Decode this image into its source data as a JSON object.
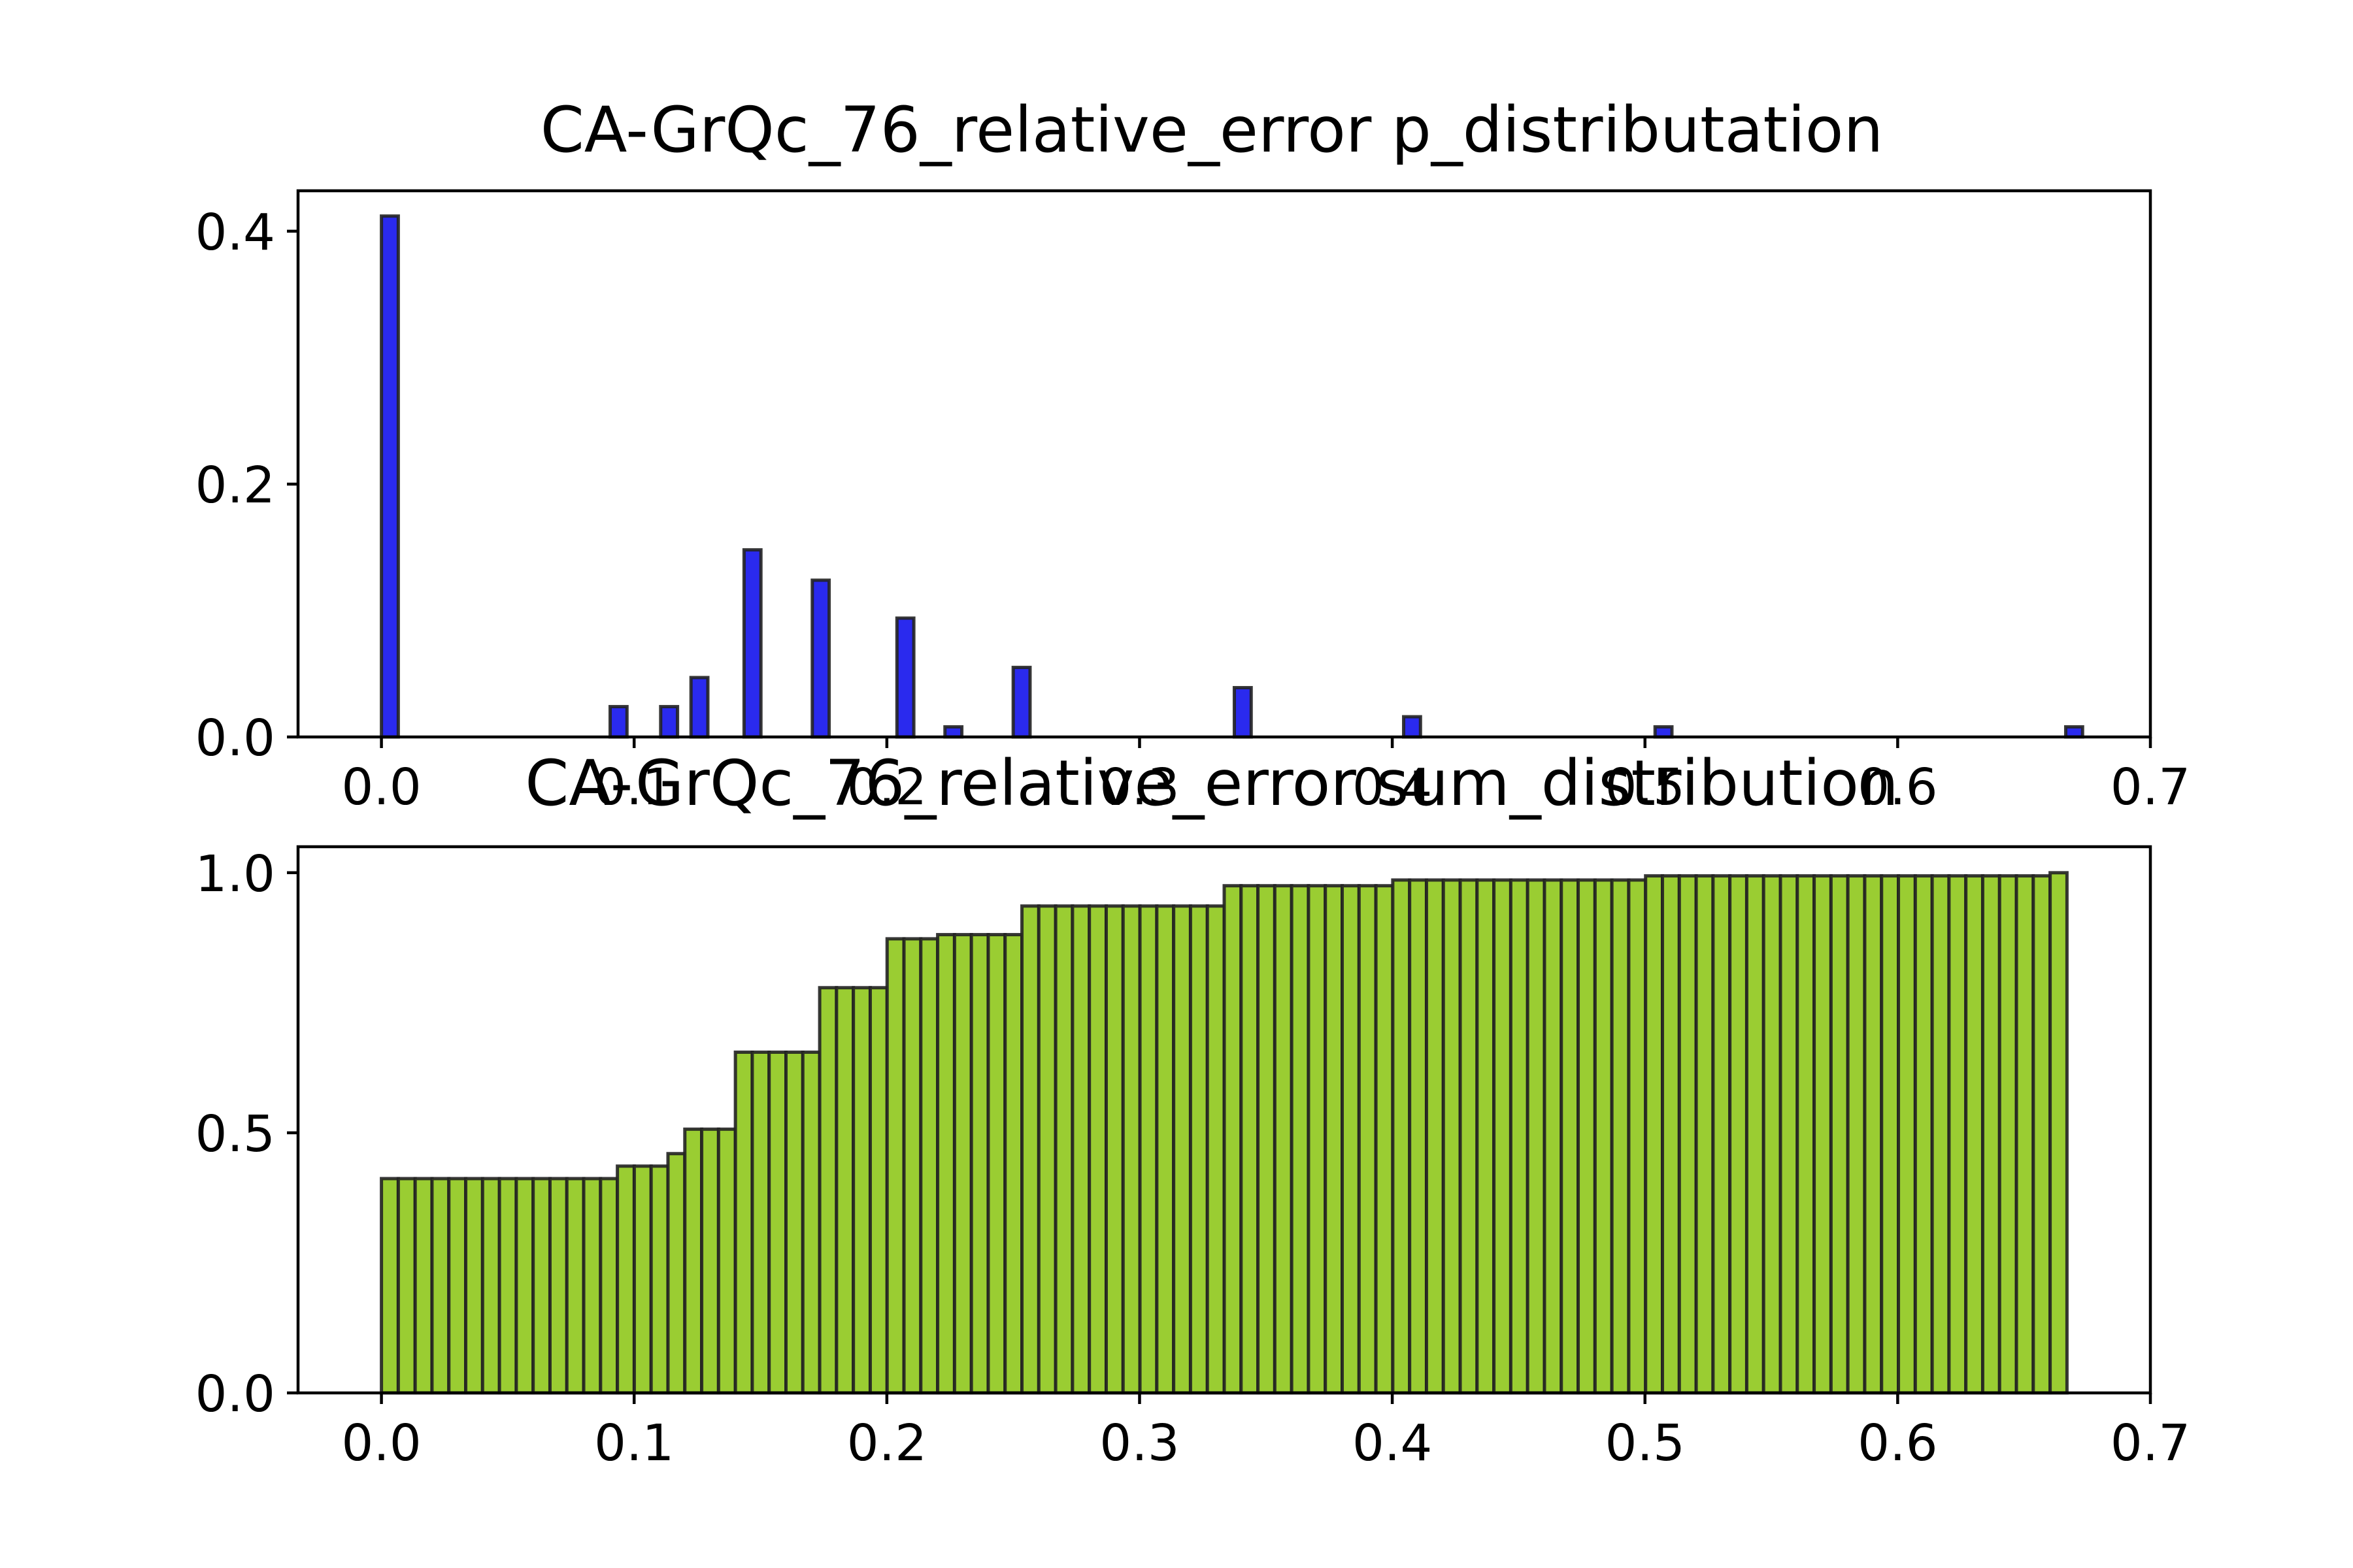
{
  "chart_data": [
    {
      "type": "bar",
      "title": "CA-GrQc_76_relative_error p_distributation",
      "xlabel": "",
      "ylabel": "",
      "xlim": [
        -0.033,
        0.7
      ],
      "ylim": [
        0,
        0.432
      ],
      "xticks": [
        "0.0",
        "0.1",
        "0.2",
        "0.3",
        "0.4",
        "0.5",
        "0.6",
        "0.7"
      ],
      "yticks": [
        "0.0",
        "0.2",
        "0.4"
      ],
      "bar_color": "#2a2aee",
      "edge_color": "#222222",
      "bin_width": 0.00667,
      "x": [
        0.0,
        0.0905,
        0.1105,
        0.1225,
        0.1435,
        0.1705,
        0.204,
        0.223,
        0.25,
        0.3375,
        0.4045,
        0.504,
        0.6665
      ],
      "values": [
        0.412,
        0.024,
        0.024,
        0.047,
        0.148,
        0.124,
        0.094,
        0.008,
        0.055,
        0.039,
        0.016,
        0.008,
        0.008
      ]
    },
    {
      "type": "bar",
      "title": "CA-GrQc_76_relative_error sum_distribution",
      "xlabel": "",
      "ylabel": "",
      "xlim": [
        -0.033,
        0.7
      ],
      "ylim": [
        0,
        1.05
      ],
      "xticks": [
        "0.0",
        "0.1",
        "0.2",
        "0.3",
        "0.4",
        "0.5",
        "0.6",
        "0.7"
      ],
      "yticks": [
        "0.0",
        "0.5",
        "1.0"
      ],
      "bar_color": "#9acd32",
      "edge_color": "#222222",
      "bin_width": 0.00667,
      "bin_count": 100,
      "step_start": [
        0.0,
        0.087,
        0.107,
        0.12,
        0.14,
        0.167,
        0.2,
        0.22,
        0.247,
        0.333,
        0.4,
        0.5,
        0.66
      ],
      "step_value": [
        0.412,
        0.436,
        0.46,
        0.507,
        0.655,
        0.779,
        0.873,
        0.881,
        0.936,
        0.975,
        0.986,
        0.994,
        1.0
      ]
    }
  ]
}
